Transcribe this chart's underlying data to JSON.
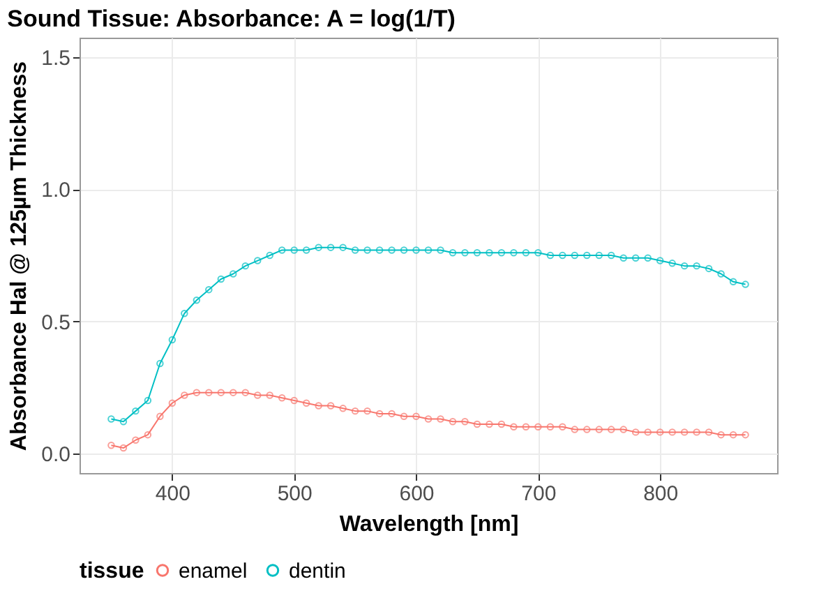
{
  "chart_data": {
    "type": "line",
    "title": "Sound Tissue: Absorbance: A = log(1/T)",
    "xlabel": "Wavelength [nm]",
    "ylabel": "Absorbance Hal @ 125µm Thickness",
    "legend_title": "tissue",
    "x": [
      350,
      360,
      370,
      380,
      390,
      400,
      410,
      420,
      430,
      440,
      450,
      460,
      470,
      480,
      490,
      500,
      510,
      520,
      530,
      540,
      550,
      560,
      570,
      580,
      590,
      600,
      610,
      620,
      630,
      640,
      650,
      660,
      670,
      680,
      690,
      700,
      710,
      720,
      730,
      740,
      750,
      760,
      770,
      780,
      790,
      800,
      810,
      820,
      830,
      840,
      850,
      860,
      870
    ],
    "series": [
      {
        "name": "enamel",
        "color": "#f8766d",
        "values": [
          0.03,
          0.02,
          0.05,
          0.07,
          0.14,
          0.19,
          0.22,
          0.23,
          0.23,
          0.23,
          0.23,
          0.23,
          0.22,
          0.22,
          0.21,
          0.2,
          0.19,
          0.18,
          0.18,
          0.17,
          0.16,
          0.16,
          0.15,
          0.15,
          0.14,
          0.14,
          0.13,
          0.13,
          0.12,
          0.12,
          0.11,
          0.11,
          0.11,
          0.1,
          0.1,
          0.1,
          0.1,
          0.1,
          0.09,
          0.09,
          0.09,
          0.09,
          0.09,
          0.08,
          0.08,
          0.08,
          0.08,
          0.08,
          0.08,
          0.08,
          0.07,
          0.07,
          0.07
        ]
      },
      {
        "name": "dentin",
        "color": "#00bfc4",
        "values": [
          0.13,
          0.12,
          0.16,
          0.2,
          0.34,
          0.43,
          0.53,
          0.58,
          0.62,
          0.66,
          0.68,
          0.71,
          0.73,
          0.75,
          0.77,
          0.77,
          0.77,
          0.78,
          0.78,
          0.78,
          0.77,
          0.77,
          0.77,
          0.77,
          0.77,
          0.77,
          0.77,
          0.77,
          0.76,
          0.76,
          0.76,
          0.76,
          0.76,
          0.76,
          0.76,
          0.76,
          0.75,
          0.75,
          0.75,
          0.75,
          0.75,
          0.75,
          0.74,
          0.74,
          0.74,
          0.73,
          0.72,
          0.71,
          0.71,
          0.7,
          0.68,
          0.65,
          0.64
        ]
      }
    ],
    "xlim": [
      324,
      896
    ],
    "xticks": [
      400,
      500,
      600,
      700,
      800
    ],
    "ylim": [
      -0.075,
      1.575
    ],
    "yticks": [
      {
        "value": 0,
        "label": "0.0"
      },
      {
        "value": 0.5,
        "label": "0.5"
      },
      {
        "value": 1,
        "label": "1.0"
      },
      {
        "value": 1.5,
        "label": "1.5"
      }
    ],
    "grid": true,
    "legend": "bottom",
    "marker": "circle",
    "line_style": "solid"
  }
}
